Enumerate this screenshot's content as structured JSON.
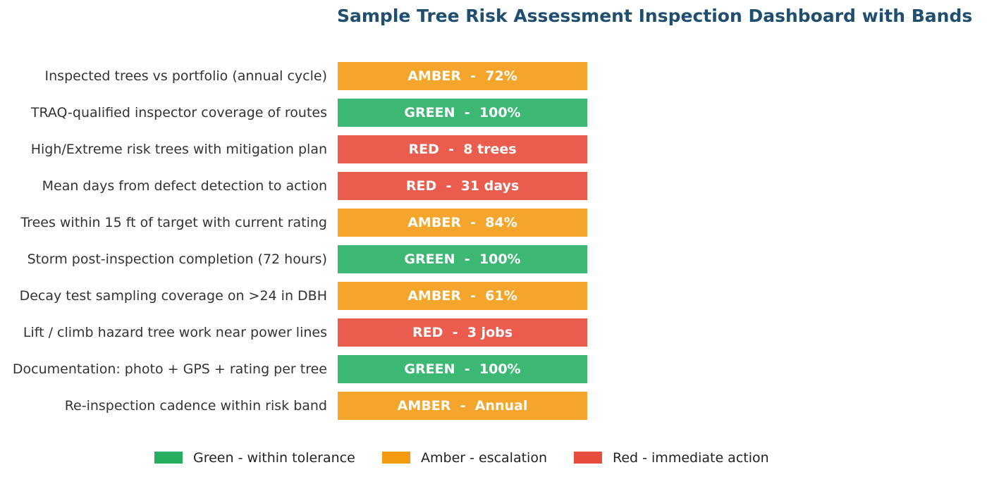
{
  "chart_data": {
    "type": "table",
    "title": "Sample Tree Risk Assessment Inspection Dashboard with Bands",
    "band_colors": {
      "GREEN": "#3db874",
      "AMBER": "#f3a62b",
      "RED": "#ea5c4d"
    },
    "rows": [
      {
        "label": "Inspected trees vs portfolio (annual cycle)",
        "band": "AMBER",
        "value": "72%"
      },
      {
        "label": "TRAQ-qualified inspector coverage of routes",
        "band": "GREEN",
        "value": "100%"
      },
      {
        "label": "High/Extreme risk trees with mitigation plan",
        "band": "RED",
        "value": "8 trees"
      },
      {
        "label": "Mean days from defect detection to action",
        "band": "RED",
        "value": "31 days"
      },
      {
        "label": "Trees within 15 ft of target with current rating",
        "band": "AMBER",
        "value": "84%"
      },
      {
        "label": "Storm post-inspection completion (72 hours)",
        "band": "GREEN",
        "value": "100%"
      },
      {
        "label": "Decay test sampling coverage on >24 in DBH",
        "band": "AMBER",
        "value": "61%"
      },
      {
        "label": "Lift / climb hazard tree work near power lines",
        "band": "RED",
        "value": "3 jobs"
      },
      {
        "label": "Documentation: photo + GPS + rating per tree",
        "band": "GREEN",
        "value": "100%"
      },
      {
        "label": "Re-inspection cadence within risk band",
        "band": "AMBER",
        "value": "Annual"
      }
    ],
    "legend": [
      {
        "band": "GREEN",
        "label": "Green - within tolerance",
        "color": "#27ae60"
      },
      {
        "band": "AMBER",
        "label": "Amber - escalation",
        "color": "#f39c12"
      },
      {
        "band": "RED",
        "label": "Red - immediate action",
        "color": "#e74c3c"
      }
    ]
  }
}
